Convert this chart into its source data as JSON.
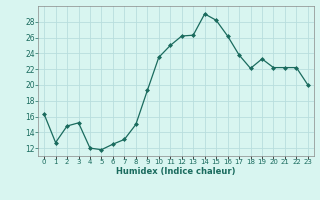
{
  "x": [
    0,
    1,
    2,
    3,
    4,
    5,
    6,
    7,
    8,
    9,
    10,
    11,
    12,
    13,
    14,
    15,
    16,
    17,
    18,
    19,
    20,
    21,
    22,
    23
  ],
  "y": [
    16.3,
    12.7,
    14.8,
    15.2,
    12.0,
    11.8,
    12.5,
    13.1,
    15.0,
    19.3,
    23.5,
    25.0,
    26.2,
    26.3,
    29.0,
    28.2,
    26.2,
    23.8,
    22.1,
    23.3,
    22.2,
    22.2,
    22.2,
    20.0
  ],
  "xlim": [
    -0.5,
    23.5
  ],
  "ylim": [
    11,
    30
  ],
  "yticks": [
    12,
    14,
    16,
    18,
    20,
    22,
    24,
    26,
    28
  ],
  "xtick_labels": [
    "0",
    "1",
    "2",
    "3",
    "4",
    "5",
    "6",
    "7",
    "8",
    "9",
    "10",
    "11",
    "12",
    "13",
    "14",
    "15",
    "16",
    "17",
    "18",
    "19",
    "20",
    "21",
    "22",
    "23"
  ],
  "xlabel": "Humidex (Indice chaleur)",
  "line_color": "#1a6b5e",
  "marker": "D",
  "marker_size": 2,
  "bg_color": "#d8f5f0",
  "grid_color": "#b8dedd",
  "title": ""
}
